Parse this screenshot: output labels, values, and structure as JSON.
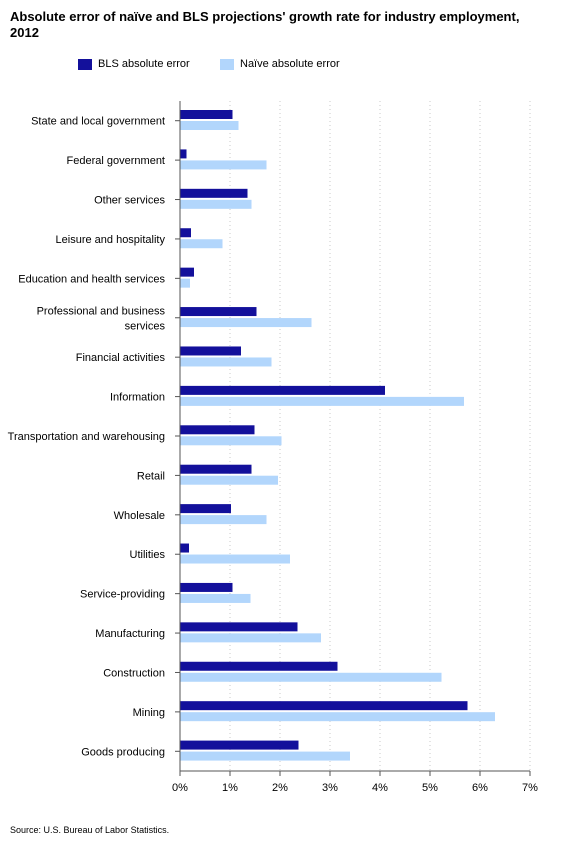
{
  "title": "Absolute error of naïve and BLS projections' growth rate for industry employment, 2012",
  "source": "Source: U.S. Bureau of Labor Statistics.",
  "colors": {
    "bls": "#13109b",
    "naive": "#b2d6fc",
    "axis": "#555555",
    "grid": "#c8c8c8",
    "text": "#000000"
  },
  "chart_data": {
    "type": "bar",
    "orientation": "horizontal",
    "categories": [
      "State and local government",
      "Federal government",
      "Other services",
      "Leisure and hospitality",
      "Education and health services",
      "Professional and business services",
      "Financial activities",
      "Information",
      "Transportation and warehousing",
      "Retail",
      "Wholesale",
      "Utilities",
      "Service-providing",
      "Manufacturing",
      "Construction",
      "Mining",
      "Goods producing"
    ],
    "series": [
      {
        "name": "BLS absolute error",
        "color": "#13109b",
        "values": [
          1.05,
          0.13,
          1.35,
          0.22,
          0.28,
          1.53,
          1.22,
          4.1,
          1.49,
          1.43,
          1.02,
          0.18,
          1.05,
          2.35,
          3.15,
          5.75,
          2.37
        ]
      },
      {
        "name": "Naïve absolute error",
        "color": "#b2d6fc",
        "values": [
          1.17,
          1.73,
          1.43,
          0.85,
          0.2,
          2.63,
          1.83,
          5.68,
          2.03,
          1.96,
          1.73,
          2.2,
          1.41,
          2.82,
          5.23,
          6.3,
          3.4
        ]
      }
    ],
    "xlim": [
      0,
      7
    ],
    "x_ticks": [
      "0%",
      "1%",
      "2%",
      "3%",
      "4%",
      "5%",
      "6%",
      "7%"
    ],
    "xlabel": "",
    "ylabel": "",
    "grid": "vertical dotted",
    "legend": "top-left"
  }
}
